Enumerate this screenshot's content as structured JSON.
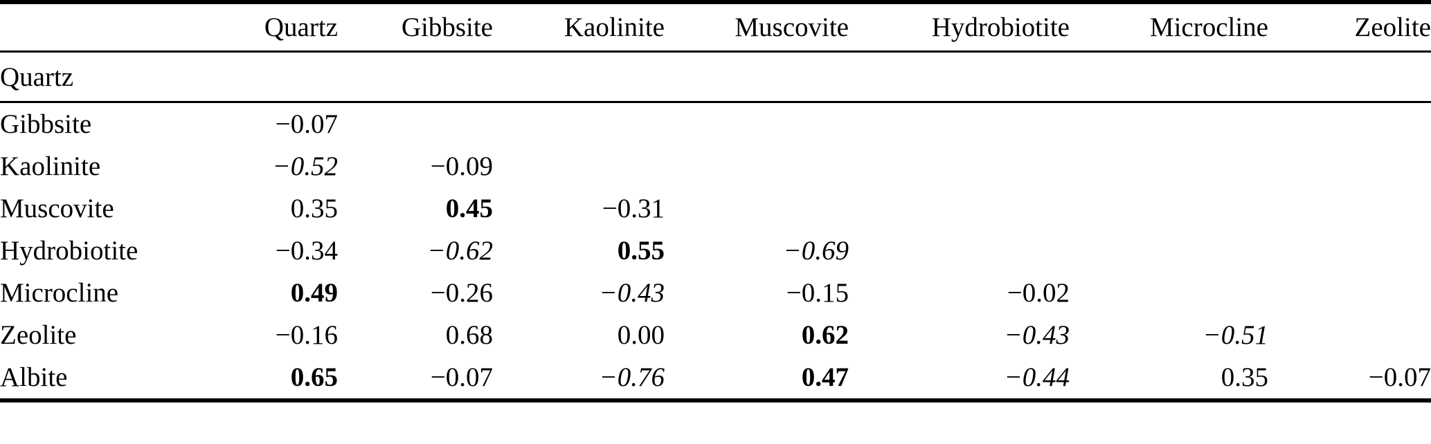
{
  "table": {
    "corner_label": "",
    "header": [
      "Quartz",
      "Gibbsite",
      "Kaolinite",
      "Muscovite",
      "Hydrobiotite",
      "Microcline",
      "Zeolite"
    ],
    "rows": [
      {
        "label": "Quartz",
        "cells": [
          null,
          null,
          null,
          null,
          null,
          null,
          null
        ]
      },
      {
        "label": "Gibbsite",
        "cells": [
          {
            "v": "−0.07",
            "s": "n"
          },
          null,
          null,
          null,
          null,
          null,
          null
        ]
      },
      {
        "label": "Kaolinite",
        "cells": [
          {
            "v": "−0.52",
            "s": "i"
          },
          {
            "v": "−0.09",
            "s": "n"
          },
          null,
          null,
          null,
          null,
          null
        ]
      },
      {
        "label": "Muscovite",
        "cells": [
          {
            "v": "0.35",
            "s": "n"
          },
          {
            "v": "0.45",
            "s": "b"
          },
          {
            "v": "−0.31",
            "s": "n"
          },
          null,
          null,
          null,
          null
        ]
      },
      {
        "label": "Hydrobiotite",
        "cells": [
          {
            "v": "−0.34",
            "s": "n"
          },
          {
            "v": "−0.62",
            "s": "i"
          },
          {
            "v": "0.55",
            "s": "b"
          },
          {
            "v": "−0.69",
            "s": "i"
          },
          null,
          null,
          null
        ]
      },
      {
        "label": "Microcline",
        "cells": [
          {
            "v": "0.49",
            "s": "b"
          },
          {
            "v": "−0.26",
            "s": "n"
          },
          {
            "v": "−0.43",
            "s": "i"
          },
          {
            "v": "−0.15",
            "s": "n"
          },
          {
            "v": "−0.02",
            "s": "n"
          },
          null,
          null
        ]
      },
      {
        "label": "Zeolite",
        "cells": [
          {
            "v": "−0.16",
            "s": "n"
          },
          {
            "v": "0.68",
            "s": "n"
          },
          {
            "v": "0.00",
            "s": "n"
          },
          {
            "v": "0.62",
            "s": "b"
          },
          {
            "v": "−0.43",
            "s": "i"
          },
          {
            "v": "−0.51",
            "s": "i"
          },
          null
        ]
      },
      {
        "label": "Albite",
        "cells": [
          {
            "v": "0.65",
            "s": "b"
          },
          {
            "v": "−0.07",
            "s": "n"
          },
          {
            "v": "−0.76",
            "s": "i"
          },
          {
            "v": "0.47",
            "s": "b"
          },
          {
            "v": "−0.44",
            "s": "i"
          },
          {
            "v": "0.35",
            "s": "n"
          },
          {
            "v": "−0.07",
            "s": "n"
          }
        ]
      }
    ]
  },
  "style_semantics": {
    "bold": "correlation highlighted (bold in source)",
    "italic": "correlation highlighted (italic in source)"
  },
  "colors": {
    "text": "#000000",
    "background": "#ffffff",
    "rule": "#000000"
  }
}
